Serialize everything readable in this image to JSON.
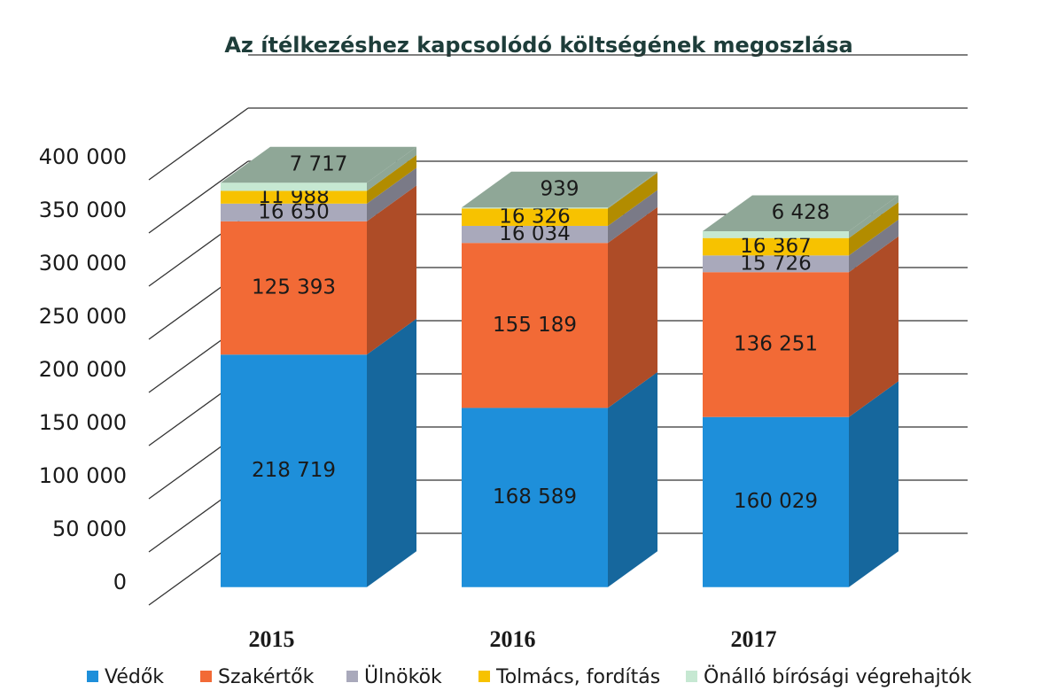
{
  "chart_data": {
    "type": "stacked-bar-3d",
    "title": "Az ítélkezéshez kapcsolódó költségének megoszlása",
    "categories": [
      "2015",
      "2016",
      "2017"
    ],
    "series": [
      {
        "name": "Védők",
        "color": "#1e8fda",
        "values": [
          218719,
          168589,
          160029
        ],
        "value_labels": [
          "218 719",
          "168 589",
          "160 029"
        ]
      },
      {
        "name": "Szakértők",
        "color": "#f26a36",
        "values": [
          125393,
          155189,
          136251
        ],
        "value_labels": [
          "125 393",
          "155 189",
          "136 251"
        ]
      },
      {
        "name": "Ülnökök",
        "color": "#a9a9bb",
        "values": [
          16650,
          16034,
          15726
        ],
        "value_labels": [
          "16 650",
          "16 034",
          "15 726"
        ]
      },
      {
        "name": "Tolmács, fordítás",
        "color": "#f7c200",
        "values": [
          11988,
          16326,
          16367
        ],
        "value_labels": [
          "11 988",
          "16 326",
          "16 367"
        ]
      },
      {
        "name": "Önálló bírósági végrehajtók",
        "color": "#c6e8d2",
        "values": [
          7717,
          939,
          6428
        ],
        "value_labels": [
          "7 717",
          "939",
          "6 428"
        ]
      }
    ],
    "ylim": [
      0,
      450000
    ],
    "yticks": [
      0,
      {
        "value": 50000,
        "label": "50 000"
      },
      {
        "value": 100000,
        "label": "100 000"
      },
      {
        "value": 150000,
        "label": "150 000"
      },
      {
        "value": 200000,
        "label": "200 000"
      },
      {
        "value": 250000,
        "label": "250 000"
      },
      {
        "value": 300000,
        "label": "300 000"
      },
      {
        "value": 350000,
        "label": "350 000"
      },
      {
        "value": 400000,
        "label": "400 000"
      }
    ],
    "grid": true,
    "legend": "bottom"
  }
}
